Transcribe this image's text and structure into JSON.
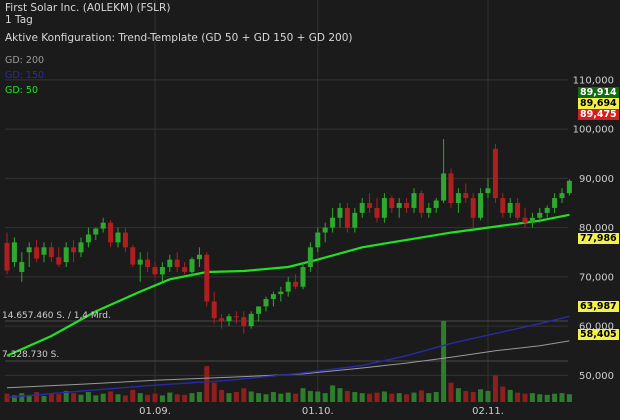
{
  "header": {
    "title": "First Solar Inc. (A0LEKM) (FSLR)",
    "interval": "1 Tag",
    "config": "Aktive Konfiguration: Trend-Template (GD 50 + GD 150 + GD 200)"
  },
  "legend": [
    {
      "label": "GD: 200",
      "color": "#9a9a9a"
    },
    {
      "label": "GD: 150",
      "color": "#2a2aa8"
    },
    {
      "label": "GD: 50",
      "color": "#22e022"
    }
  ],
  "volume_labels": {
    "top": "14.657.460 S. / 1,4 Mrd.",
    "mid": "7.328.730 S."
  },
  "price_tags": [
    {
      "label": "89,914",
      "value": 89.914,
      "bg": "#0f6b0f",
      "fg": "#ffffff"
    },
    {
      "label": "89,694",
      "value": 89.694,
      "bg": "#f3f04a",
      "fg": "#000000"
    },
    {
      "label": "89,475",
      "value": 89.475,
      "bg": "#d21f1f",
      "fg": "#ffffff"
    },
    {
      "label": "77,986",
      "value": 77.986,
      "bg": "#f3f04a",
      "fg": "#000000"
    },
    {
      "label": "63,987",
      "value": 63.987,
      "bg": "#f3f04a",
      "fg": "#000000"
    },
    {
      "label": "58,405",
      "value": 58.405,
      "bg": "#f3f04a",
      "fg": "#000000"
    }
  ],
  "colors": {
    "up": "#2fa82f",
    "down": "#b01f1f",
    "vol_up": "#2e7d2e",
    "vol_down": "#8e1f1f",
    "gd50": "#22e022",
    "gd150": "#2a2aa8",
    "gd200": "#9a9a9a",
    "grid": "#333333"
  },
  "chart_data": {
    "type": "candlestick",
    "title": "First Solar Inc. (A0LEKM) (FSLR)",
    "ylim": [
      45,
      112
    ],
    "y_ticks": [
      50,
      60,
      70,
      80,
      90,
      100,
      110
    ],
    "y_tick_labels": [
      "50,000",
      "60,000",
      "70,000",
      "80,000",
      "90,000",
      "100,000",
      "110,000"
    ],
    "x_ticks": [
      {
        "index": 20,
        "label": "01.09."
      },
      {
        "index": 42,
        "label": "01.10."
      },
      {
        "index": 65,
        "label": "02.11."
      }
    ],
    "candles": [
      [
        76.9,
        79.0,
        70.5,
        71.3
      ],
      [
        73.0,
        78.0,
        72.0,
        77.0
      ],
      [
        71.0,
        75.0,
        69.0,
        73.0
      ],
      [
        75.0,
        77.0,
        72.0,
        76.0
      ],
      [
        76.0,
        77.5,
        73.0,
        73.7
      ],
      [
        74.5,
        77.0,
        73.0,
        76.0
      ],
      [
        76.0,
        77.0,
        73.0,
        74.0
      ],
      [
        74.0,
        76.0,
        72.0,
        72.5
      ],
      [
        73.0,
        77.0,
        72.0,
        76.0
      ],
      [
        76.0,
        77.5,
        73.0,
        75.0
      ],
      [
        75.0,
        78.0,
        74.0,
        77.0
      ],
      [
        77.0,
        80.0,
        76.0,
        78.6
      ],
      [
        78.6,
        80.0,
        77.5,
        79.8
      ],
      [
        79.8,
        82.0,
        79.0,
        81.0
      ],
      [
        81.0,
        81.5,
        76.0,
        77.0
      ],
      [
        77.0,
        80.0,
        76.0,
        79.0
      ],
      [
        79.0,
        80.0,
        75.0,
        76.0
      ],
      [
        76.0,
        76.5,
        72.0,
        72.5
      ],
      [
        72.5,
        75.0,
        69.0,
        73.5
      ],
      [
        73.5,
        75.0,
        71.0,
        72.0
      ],
      [
        72.0,
        73.0,
        70.0,
        70.5
      ],
      [
        70.5,
        73.0,
        69.0,
        72.0
      ],
      [
        72.0,
        74.5,
        71.0,
        73.5
      ],
      [
        73.5,
        75.0,
        71.0,
        72.0
      ],
      [
        72.0,
        73.0,
        70.5,
        71.0
      ],
      [
        71.0,
        74.0,
        70.0,
        73.6
      ],
      [
        73.6,
        76.0,
        72.0,
        74.5
      ],
      [
        74.5,
        75.0,
        64.0,
        65.0
      ],
      [
        65.0,
        67.0,
        60.5,
        61.6
      ],
      [
        61.6,
        62.5,
        59.5,
        61.0
      ],
      [
        61.0,
        62.5,
        60.0,
        62.0
      ],
      [
        62.0,
        63.0,
        60.5,
        61.8
      ],
      [
        61.8,
        63.0,
        58.5,
        60.0
      ],
      [
        60.0,
        63.0,
        59.5,
        62.5
      ],
      [
        62.5,
        64.0,
        61.0,
        64.0
      ],
      [
        64.0,
        66.0,
        63.0,
        65.5
      ],
      [
        65.5,
        67.0,
        64.0,
        66.5
      ],
      [
        66.5,
        68.0,
        65.0,
        67.0
      ],
      [
        67.0,
        70.0,
        66.0,
        69.0
      ],
      [
        69.0,
        70.5,
        67.5,
        68.0
      ],
      [
        68.0,
        73.0,
        67.5,
        72.0
      ],
      [
        72.0,
        77.0,
        71.0,
        76.0
      ],
      [
        76.0,
        80.0,
        75.0,
        79.0
      ],
      [
        79.0,
        81.0,
        77.0,
        80.0
      ],
      [
        80.0,
        84.0,
        79.0,
        82.0
      ],
      [
        82.0,
        85.0,
        80.0,
        84.0
      ],
      [
        84.0,
        85.0,
        79.0,
        80.0
      ],
      [
        80.0,
        84.0,
        79.0,
        83.0
      ],
      [
        83.0,
        86.0,
        82.0,
        85.0
      ],
      [
        85.0,
        87.0,
        83.0,
        84.0
      ],
      [
        84.0,
        86.0,
        81.0,
        82.0
      ],
      [
        82.0,
        87.0,
        81.0,
        86.0
      ],
      [
        86.0,
        86.5,
        83.0,
        84.0
      ],
      [
        84.0,
        86.0,
        82.0,
        85.0
      ],
      [
        85.0,
        86.0,
        83.0,
        84.0
      ],
      [
        84.0,
        88.0,
        83.0,
        87.0
      ],
      [
        87.0,
        87.5,
        82.0,
        83.0
      ],
      [
        83.0,
        85.0,
        82.0,
        84.0
      ],
      [
        84.0,
        86.0,
        83.0,
        85.5
      ],
      [
        85.5,
        98.0,
        85.0,
        91.0
      ],
      [
        91.0,
        92.0,
        84.0,
        85.0
      ],
      [
        85.0,
        88.0,
        83.0,
        87.0
      ],
      [
        87.0,
        89.0,
        85.0,
        86.0
      ],
      [
        86.0,
        87.0,
        80.0,
        82.0
      ],
      [
        82.0,
        88.0,
        81.5,
        87.0
      ],
      [
        87.0,
        90.0,
        86.0,
        88.0
      ],
      [
        96.0,
        97.0,
        85.0,
        86.0
      ],
      [
        86.0,
        87.0,
        82.0,
        83.0
      ],
      [
        83.0,
        86.0,
        82.0,
        85.0
      ],
      [
        85.0,
        86.0,
        81.5,
        82.0
      ],
      [
        82.0,
        84.0,
        80.0,
        81.0
      ],
      [
        81.0,
        83.0,
        80.0,
        82.0
      ],
      [
        82.0,
        84.0,
        81.0,
        83.0
      ],
      [
        83.0,
        84.5,
        82.0,
        84.0
      ],
      [
        84.0,
        87.0,
        83.0,
        86.0
      ],
      [
        86.0,
        88.0,
        85.0,
        87.0
      ],
      [
        87.0,
        89.8,
        86.5,
        89.5
      ]
    ],
    "volume": [
      1.5,
      1.2,
      1.6,
      1.3,
      1.8,
      1.1,
      1.5,
      1.4,
      2.0,
      1.6,
      1.3,
      1.8,
      1.2,
      1.5,
      1.9,
      1.4,
      1.2,
      2.2,
      1.6,
      1.3,
      1.5,
      1.2,
      1.7,
      1.4,
      1.3,
      1.6,
      1.8,
      6.5,
      3.5,
      2.2,
      1.6,
      1.8,
      2.5,
      1.9,
      1.6,
      1.4,
      1.8,
      1.5,
      1.7,
      1.5,
      2.5,
      2.0,
      1.9,
      1.6,
      3.0,
      2.5,
      2.0,
      1.8,
      1.6,
      1.5,
      1.7,
      1.9,
      1.5,
      1.6,
      1.4,
      1.7,
      2.1,
      1.6,
      1.8,
      14.7,
      3.5,
      2.5,
      2.0,
      1.8,
      2.3,
      2.0,
      4.8,
      2.8,
      2.2,
      1.7,
      1.5,
      1.6,
      1.4,
      1.3,
      1.5,
      1.6,
      1.4
    ],
    "volume_max": 14.65746,
    "gd50": [
      [
        0,
        54.0
      ],
      [
        6,
        58.0
      ],
      [
        12,
        63.0
      ],
      [
        18,
        67.0
      ],
      [
        22,
        69.5
      ],
      [
        27,
        71.0
      ],
      [
        32,
        71.2
      ],
      [
        38,
        72.0
      ],
      [
        42,
        73.5
      ],
      [
        48,
        76.0
      ],
      [
        54,
        77.5
      ],
      [
        60,
        79.0
      ],
      [
        66,
        80.2
      ],
      [
        72,
        81.4
      ],
      [
        76,
        82.6
      ]
    ],
    "gd150": [
      [
        0,
        45.5
      ],
      [
        10,
        46.8
      ],
      [
        20,
        48.0
      ],
      [
        30,
        49.0
      ],
      [
        40,
        50.5
      ],
      [
        48,
        52.0
      ],
      [
        54,
        54.0
      ],
      [
        60,
        56.5
      ],
      [
        66,
        58.5
      ],
      [
        72,
        60.5
      ],
      [
        76,
        62.0
      ]
    ],
    "gd200": [
      [
        0,
        47.5
      ],
      [
        10,
        48.2
      ],
      [
        20,
        49.0
      ],
      [
        30,
        49.6
      ],
      [
        40,
        50.3
      ],
      [
        48,
        51.5
      ],
      [
        54,
        52.5
      ],
      [
        60,
        53.7
      ],
      [
        66,
        55.0
      ],
      [
        72,
        56.0
      ],
      [
        76,
        57.0
      ]
    ]
  }
}
